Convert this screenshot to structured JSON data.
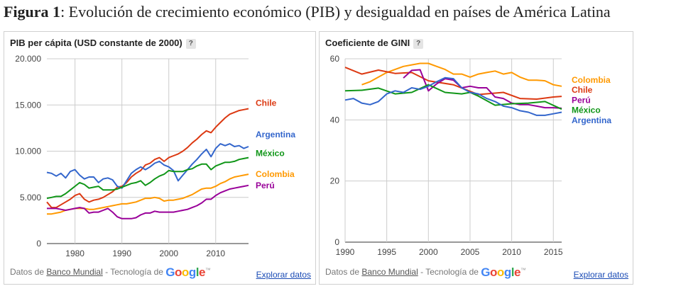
{
  "figure": {
    "label": "Figura 1",
    "caption": ": Evolución de crecimiento económico (PIB) y desigualdad en países de América Latina"
  },
  "footer": {
    "source_prefix": "Datos de",
    "source_link": "Banco Mundial",
    "tech": "- Tecnología de",
    "explore": "Explorar datos",
    "help": "?",
    "google_letters": [
      "G",
      "o",
      "o",
      "g",
      "l",
      "e"
    ],
    "google_colors": [
      "#4285f4",
      "#ea4335",
      "#fbbc05",
      "#4285f4",
      "#34a853",
      "#ea4335"
    ]
  },
  "chart_data": [
    {
      "type": "line",
      "title": "PIB per cápita (USD constante de 2000)",
      "xlim": [
        1974,
        2017
      ],
      "ylim": [
        0,
        20000
      ],
      "yticks": [
        0,
        5000,
        10000,
        15000,
        20000
      ],
      "ytick_labels": [
        "0",
        "5.000",
        "10.000",
        "15.000",
        "20.000"
      ],
      "xticks": [
        1980,
        1990,
        2000,
        2010
      ],
      "xtick_labels": [
        "1980",
        "1990",
        "2000",
        "2010"
      ],
      "grid": true,
      "legend": "right, labels at line ends",
      "series": [
        {
          "name": "Chile",
          "color": "#dc3912",
          "x": [
            1974,
            1975,
            1976,
            1977,
            1978,
            1979,
            1980,
            1981,
            1982,
            1983,
            1984,
            1985,
            1986,
            1987,
            1988,
            1989,
            1990,
            1991,
            1992,
            1993,
            1994,
            1995,
            1996,
            1997,
            1998,
            1999,
            2000,
            2001,
            2002,
            2003,
            2004,
            2005,
            2006,
            2007,
            2008,
            2009,
            2010,
            2011,
            2012,
            2013,
            2014,
            2015,
            2016,
            2017
          ],
          "values": [
            4500,
            3900,
            3900,
            4200,
            4500,
            4800,
            5200,
            5400,
            4800,
            4500,
            4700,
            4800,
            5000,
            5300,
            5600,
            6100,
            6200,
            6600,
            7200,
            7600,
            7900,
            8500,
            8700,
            9100,
            9300,
            8900,
            9300,
            9500,
            9700,
            10000,
            10400,
            10900,
            11300,
            11800,
            12200,
            12000,
            12600,
            13100,
            13600,
            14000,
            14200,
            14400,
            14500,
            14600
          ]
        },
        {
          "name": "Argentina",
          "color": "#3366cc",
          "x": [
            1974,
            1975,
            1976,
            1977,
            1978,
            1979,
            1980,
            1981,
            1982,
            1983,
            1984,
            1985,
            1986,
            1987,
            1988,
            1989,
            1990,
            1991,
            1992,
            1993,
            1994,
            1995,
            1996,
            1997,
            1998,
            1999,
            2000,
            2001,
            2002,
            2003,
            2004,
            2005,
            2006,
            2007,
            2008,
            2009,
            2010,
            2011,
            2012,
            2013,
            2014,
            2015,
            2016,
            2017
          ],
          "values": [
            7700,
            7600,
            7300,
            7600,
            7100,
            7800,
            8000,
            7400,
            7000,
            7200,
            7200,
            6600,
            7000,
            7100,
            6900,
            6200,
            6000,
            6800,
            7600,
            8000,
            8300,
            8000,
            8300,
            8700,
            8900,
            8500,
            8300,
            7900,
            6800,
            7400,
            8000,
            8600,
            9100,
            9700,
            10200,
            9400,
            10300,
            10800,
            10600,
            10800,
            10500,
            10600,
            10300,
            10500
          ]
        },
        {
          "name": "México",
          "color": "#109618",
          "x": [
            1974,
            1975,
            1976,
            1977,
            1978,
            1979,
            1980,
            1981,
            1982,
            1983,
            1984,
            1985,
            1986,
            1987,
            1988,
            1989,
            1990,
            1991,
            1992,
            1993,
            1994,
            1995,
            1996,
            1997,
            1998,
            1999,
            2000,
            2001,
            2002,
            2003,
            2004,
            2005,
            2006,
            2007,
            2008,
            2009,
            2010,
            2011,
            2012,
            2013,
            2014,
            2015,
            2016,
            2017
          ],
          "values": [
            4900,
            5000,
            5100,
            5100,
            5400,
            5800,
            6200,
            6600,
            6400,
            6000,
            6100,
            6200,
            5800,
            5800,
            5800,
            5900,
            6100,
            6300,
            6500,
            6600,
            6800,
            6300,
            6600,
            7000,
            7300,
            7500,
            7900,
            7800,
            7800,
            7800,
            8000,
            8100,
            8400,
            8600,
            8600,
            8000,
            8400,
            8600,
            8800,
            8800,
            8900,
            9100,
            9200,
            9300
          ]
        },
        {
          "name": "Colombia",
          "color": "#ff9900",
          "x": [
            1974,
            1975,
            1976,
            1977,
            1978,
            1979,
            1980,
            1981,
            1982,
            1983,
            1984,
            1985,
            1986,
            1987,
            1988,
            1989,
            1990,
            1991,
            1992,
            1993,
            1994,
            1995,
            1996,
            1997,
            1998,
            1999,
            2000,
            2001,
            2002,
            2003,
            2004,
            2005,
            2006,
            2007,
            2008,
            2009,
            2010,
            2011,
            2012,
            2013,
            2014,
            2015,
            2016,
            2017
          ],
          "values": [
            3200,
            3200,
            3300,
            3400,
            3600,
            3700,
            3800,
            3800,
            3800,
            3700,
            3700,
            3800,
            3900,
            4000,
            4100,
            4200,
            4300,
            4300,
            4400,
            4500,
            4700,
            4900,
            4900,
            5000,
            4900,
            4600,
            4700,
            4700,
            4800,
            4900,
            5100,
            5300,
            5600,
            5900,
            6000,
            6000,
            6200,
            6500,
            6700,
            7000,
            7200,
            7300,
            7400,
            7500
          ]
        },
        {
          "name": "Perú",
          "color": "#990099",
          "x": [
            1974,
            1975,
            1976,
            1977,
            1978,
            1979,
            1980,
            1981,
            1982,
            1983,
            1984,
            1985,
            1986,
            1987,
            1988,
            1989,
            1990,
            1991,
            1992,
            1993,
            1994,
            1995,
            1996,
            1997,
            1998,
            1999,
            2000,
            2001,
            2002,
            2003,
            2004,
            2005,
            2006,
            2007,
            2008,
            2009,
            2010,
            2011,
            2012,
            2013,
            2014,
            2015,
            2016,
            2017
          ],
          "values": [
            3800,
            3800,
            3800,
            3700,
            3600,
            3700,
            3800,
            3900,
            3800,
            3300,
            3400,
            3400,
            3600,
            3800,
            3400,
            2900,
            2700,
            2700,
            2700,
            2800,
            3100,
            3300,
            3300,
            3500,
            3400,
            3400,
            3400,
            3400,
            3500,
            3600,
            3700,
            3900,
            4100,
            4400,
            4800,
            4800,
            5200,
            5500,
            5700,
            5900,
            6000,
            6100,
            6200,
            6300
          ]
        }
      ]
    },
    {
      "type": "line",
      "title": "Coeficiente de GINI",
      "xlim": [
        1990,
        2016
      ],
      "ylim": [
        0,
        60
      ],
      "yticks": [
        0,
        20,
        40,
        60
      ],
      "ytick_labels": [
        "0",
        "20",
        "40",
        "60"
      ],
      "xticks": [
        1990,
        1995,
        2000,
        2005,
        2010,
        2015
      ],
      "xtick_labels": [
        "1990",
        "1995",
        "2000",
        "2005",
        "2010",
        "2015"
      ],
      "grid": true,
      "legend": "right, labels at line ends",
      "series": [
        {
          "name": "Colombia",
          "color": "#ff9900",
          "x": [
            1992,
            1993,
            1994,
            1995,
            1996,
            1997,
            1998,
            1999,
            2000,
            2001,
            2002,
            2003,
            2004,
            2005,
            2006,
            2007,
            2008,
            2009,
            2010,
            2011,
            2012,
            2013,
            2014,
            2015,
            2016
          ],
          "values": [
            51.5,
            52.5,
            54.0,
            55.5,
            56.5,
            57.5,
            58.0,
            58.5,
            58.5,
            57.5,
            56.5,
            55.0,
            55.0,
            54.0,
            55.0,
            55.5,
            56.0,
            55.0,
            55.5,
            54.0,
            53.0,
            53.0,
            52.8,
            51.5,
            51.0
          ]
        },
        {
          "name": "Chile",
          "color": "#dc3912",
          "x": [
            1990,
            1992,
            1994,
            1996,
            1998,
            2000,
            2003,
            2006,
            2009,
            2011,
            2013,
            2015,
            2016
          ],
          "values": [
            57.2,
            55.0,
            56.3,
            55.2,
            55.5,
            52.8,
            51.5,
            48.3,
            49.0,
            47.0,
            46.8,
            47.5,
            47.7
          ]
        },
        {
          "name": "Perú",
          "color": "#990099",
          "x": [
            1997,
            1998,
            1999,
            2000,
            2001,
            2002,
            2003,
            2004,
            2005,
            2006,
            2007,
            2008,
            2009,
            2010,
            2011,
            2012,
            2013,
            2014,
            2015,
            2016
          ],
          "values": [
            53.7,
            56.2,
            56.4,
            49.5,
            51.8,
            53.5,
            53.0,
            50.5,
            51.0,
            50.5,
            50.5,
            47.5,
            47.0,
            45.5,
            45.0,
            45.0,
            44.5,
            44.0,
            44.0,
            43.8
          ]
        },
        {
          "name": "México",
          "color": "#109618",
          "x": [
            1990,
            1992,
            1994,
            1996,
            1998,
            2000,
            2002,
            2004,
            2005,
            2006,
            2008,
            2010,
            2012,
            2014,
            2016
          ],
          "values": [
            49.5,
            49.7,
            50.4,
            48.5,
            49.0,
            51.5,
            49.0,
            48.5,
            49.0,
            47.8,
            44.8,
            45.3,
            45.5,
            46.0,
            43.5
          ]
        },
        {
          "name": "Argentina",
          "color": "#3366cc",
          "x": [
            1990,
            1991,
            1992,
            1993,
            1994,
            1995,
            1996,
            1997,
            1998,
            1999,
            2000,
            2001,
            2002,
            2003,
            2004,
            2005,
            2006,
            2007,
            2008,
            2009,
            2010,
            2011,
            2012,
            2013,
            2014,
            2015,
            2016
          ],
          "values": [
            46.5,
            47.0,
            45.5,
            45.0,
            46.0,
            48.5,
            49.5,
            49.0,
            50.5,
            50.0,
            51.0,
            52.5,
            53.8,
            53.5,
            50.5,
            49.0,
            48.5,
            47.0,
            46.0,
            44.5,
            44.0,
            43.0,
            42.5,
            41.5,
            41.5,
            42.0,
            42.5
          ]
        }
      ]
    }
  ]
}
